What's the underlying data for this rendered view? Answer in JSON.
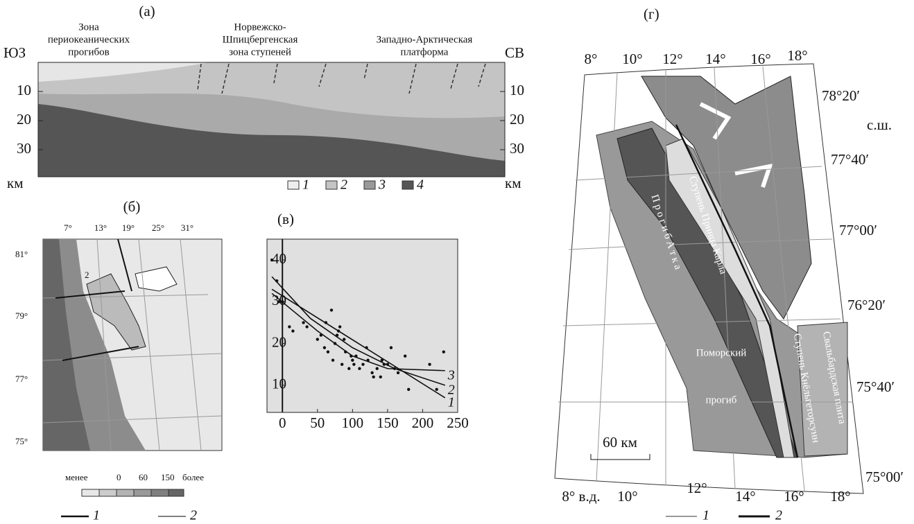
{
  "panel_a": {
    "label": "(а)",
    "zones": [
      "Зона",
      "периокеанических",
      "прогибов",
      "Норвежско-",
      "Шпицбергенская",
      "зона ступеней",
      "Западно-Арктическая",
      "платформа"
    ],
    "left_dir": "ЮЗ",
    "right_dir": "СВ",
    "depth_ticks": [
      10,
      20,
      30
    ],
    "unit": "км",
    "legend": [
      "1",
      "2",
      "3",
      "4"
    ]
  },
  "panel_b": {
    "label": "(б)",
    "lon_labels": [
      "7°",
      "13°",
      "19°",
      "25°",
      "31°"
    ],
    "lat_labels": [
      "81°",
      "79°",
      "77°",
      "75°"
    ],
    "point_label": "2",
    "scale_labels": [
      "менее",
      "0",
      "60",
      "150",
      "более"
    ],
    "legend": [
      "1",
      "2"
    ]
  },
  "chart_data": {
    "type": "scatter",
    "title": "(в)",
    "x": [
      -15,
      -8,
      -5,
      0,
      10,
      15,
      30,
      35,
      50,
      55,
      60,
      62,
      65,
      70,
      72,
      75,
      78,
      80,
      82,
      85,
      88,
      90,
      95,
      98,
      100,
      102,
      105,
      110,
      115,
      120,
      122,
      128,
      130,
      135,
      140,
      142,
      145,
      150,
      155,
      160,
      165,
      175,
      180,
      210,
      220,
      230
    ],
    "values": [
      40,
      35,
      30,
      30,
      24,
      23,
      25,
      24,
      21,
      22,
      19,
      25,
      18,
      28,
      16,
      20,
      22,
      23,
      24,
      15,
      21,
      18,
      14,
      17,
      16,
      15,
      17,
      14,
      15,
      19,
      16,
      13,
      12,
      14,
      12,
      16,
      15,
      15,
      19,
      14,
      13,
      17,
      9,
      15,
      9,
      18
    ],
    "lines": [
      {
        "name": "1",
        "x": [
          -15,
          232
        ],
        "values": [
          33,
          7
        ]
      },
      {
        "name": "2",
        "x": [
          -15,
          40,
          100,
          160,
          232
        ],
        "values": [
          36,
          26,
          19,
          14,
          10
        ]
      },
      {
        "name": "3",
        "x": [
          -15,
          50,
          100,
          150,
          232
        ],
        "values": [
          32,
          23,
          17,
          14,
          13.5
        ]
      }
    ],
    "xlim": [
      -22,
      250
    ],
    "ylim": [
      3.5,
      45
    ],
    "xticks": [
      0,
      50,
      100,
      150,
      200,
      250
    ],
    "yticks": [
      10,
      20,
      30,
      40
    ]
  },
  "panel_g": {
    "label": "(г)",
    "lon_top": [
      "8°",
      "10°",
      "12°",
      "14°",
      "16°",
      "18°"
    ],
    "lat_labels": [
      "78°20′",
      "с.ш.",
      "77°40′",
      "77°00′",
      "76°20′",
      "75°40′",
      "75°00′"
    ],
    "lon_bottom": [
      "8° в.д.",
      "10°",
      "12°",
      "14°",
      "16°",
      "18°"
    ],
    "features": [
      "Ступень Принца Карла",
      "П р о г и б   А т к а",
      "Поморский",
      "прогиб",
      "Ступень Кнёльгеторсунн",
      "Свальбардская плита"
    ],
    "scale": "60 км",
    "legend": [
      "1",
      "2"
    ]
  }
}
